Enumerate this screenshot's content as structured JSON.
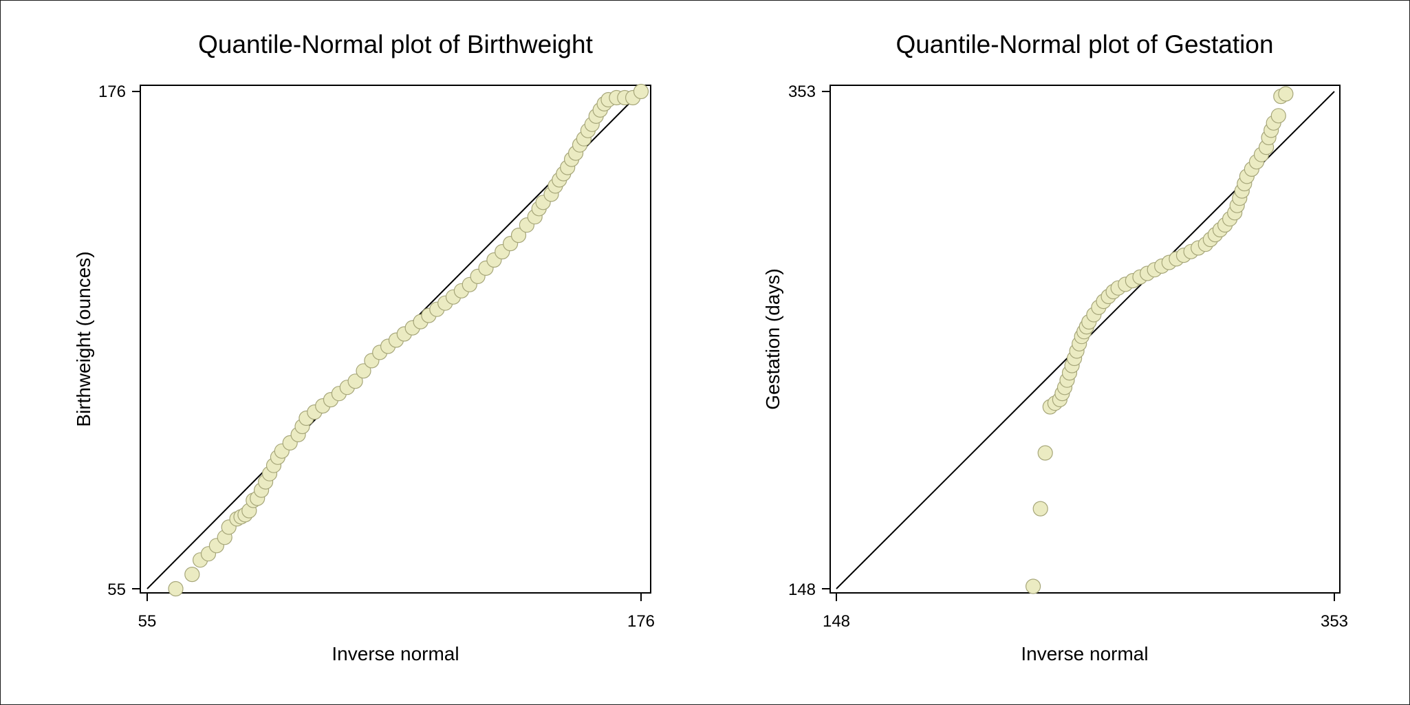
{
  "colors": {
    "marker_fill": "#ebebc2",
    "marker_stroke": "#a6a679",
    "line": "#000000",
    "background": "#ffffff"
  },
  "chart_data": [
    {
      "type": "scatter",
      "title": "Quantile-Normal plot of Birthweight",
      "xlabel": "Inverse normal",
      "ylabel": "Birthweight (ounces)",
      "xlim": [
        55,
        176
      ],
      "ylim": [
        55,
        176
      ],
      "xticks": [
        55,
        176
      ],
      "yticks": [
        55,
        176
      ],
      "reference_line": [
        [
          55,
          176
        ],
        [
          55,
          176
        ]
      ],
      "grid": false,
      "series": [
        {
          "points": [
            [
              62,
              55
            ],
            [
              66,
              58.5
            ],
            [
              68,
              62
            ],
            [
              70,
              63.5
            ],
            [
              72,
              65.5
            ],
            [
              74,
              67.5
            ],
            [
              75,
              70
            ],
            [
              77,
              72
            ],
            [
              78,
              72.5
            ],
            [
              79,
              73
            ],
            [
              80,
              74
            ],
            [
              81,
              76.5
            ],
            [
              82,
              77
            ],
            [
              83,
              79
            ],
            [
              84,
              81
            ],
            [
              85,
              83
            ],
            [
              86,
              85
            ],
            [
              87,
              87
            ],
            [
              88,
              88.5
            ],
            [
              90,
              90.5
            ],
            [
              92,
              92.5
            ],
            [
              93,
              94.5
            ],
            [
              94,
              96.5
            ],
            [
              96,
              98
            ],
            [
              98,
              99.5
            ],
            [
              100,
              101
            ],
            [
              102,
              102.5
            ],
            [
              104,
              104
            ],
            [
              106,
              105.5
            ],
            [
              108,
              108
            ],
            [
              110,
              110.5
            ],
            [
              112,
              112.5
            ],
            [
              114,
              114
            ],
            [
              116,
              115.5
            ],
            [
              118,
              117
            ],
            [
              120,
              118.5
            ],
            [
              122,
              120
            ],
            [
              124,
              121.5
            ],
            [
              126,
              123
            ],
            [
              128,
              124.5
            ],
            [
              130,
              126
            ],
            [
              132,
              127.5
            ],
            [
              134,
              129
            ],
            [
              136,
              131
            ],
            [
              138,
              133
            ],
            [
              140,
              135
            ],
            [
              142,
              137
            ],
            [
              144,
              139
            ],
            [
              146,
              141
            ],
            [
              148,
              143.5
            ],
            [
              150,
              145.5
            ],
            [
              151,
              147.5
            ],
            [
              152,
              149
            ],
            [
              154,
              151
            ],
            [
              155,
              153
            ],
            [
              156,
              154.5
            ],
            [
              157,
              156
            ],
            [
              158,
              157.5
            ],
            [
              159,
              159.5
            ],
            [
              160,
              161
            ],
            [
              161,
              163
            ],
            [
              162,
              164.5
            ],
            [
              163,
              166.5
            ],
            [
              164,
              168
            ],
            [
              165,
              170
            ],
            [
              166,
              171.5
            ],
            [
              167,
              173
            ],
            [
              168,
              174
            ],
            [
              170,
              174.5
            ],
            [
              172,
              174.5
            ],
            [
              174,
              174.5
            ],
            [
              176,
              176
            ]
          ]
        }
      ]
    },
    {
      "type": "scatter",
      "title": "Quantile-Normal plot of Gestation",
      "xlabel": "Inverse normal",
      "ylabel": "Gestation (days)",
      "xlim": [
        148,
        353
      ],
      "ylim": [
        148,
        353
      ],
      "xticks": [
        148,
        353
      ],
      "yticks": [
        148,
        353
      ],
      "reference_line": [
        [
          148,
          353
        ],
        [
          148,
          353
        ]
      ],
      "grid": false,
      "series": [
        {
          "points": [
            [
              229,
              149
            ],
            [
              232,
              181
            ],
            [
              234,
              204
            ],
            [
              236,
              223
            ],
            [
              238,
              224.5
            ],
            [
              240,
              226
            ],
            [
              241,
              228.5
            ],
            [
              242,
              231
            ],
            [
              243,
              234
            ],
            [
              244,
              237
            ],
            [
              245,
              240
            ],
            [
              246,
              243
            ],
            [
              247,
              246
            ],
            [
              248,
              249
            ],
            [
              249,
              252
            ],
            [
              250,
              254
            ],
            [
              251,
              256
            ],
            [
              252,
              258
            ],
            [
              254,
              261
            ],
            [
              256,
              264
            ],
            [
              258,
              266.5
            ],
            [
              260,
              268.5
            ],
            [
              262,
              270.5
            ],
            [
              264,
              272
            ],
            [
              267,
              273.5
            ],
            [
              270,
              275
            ],
            [
              273,
              276.5
            ],
            [
              276,
              278
            ],
            [
              279,
              279.5
            ],
            [
              282,
              281
            ],
            [
              285,
              282.5
            ],
            [
              288,
              284
            ],
            [
              291,
              285.5
            ],
            [
              294,
              287
            ],
            [
              297,
              288.5
            ],
            [
              300,
              290
            ],
            [
              302,
              292
            ],
            [
              304,
              294
            ],
            [
              306,
              296
            ],
            [
              308,
              298
            ],
            [
              310,
              300.5
            ],
            [
              312,
              303
            ],
            [
              313,
              306
            ],
            [
              314,
              309
            ],
            [
              315,
              312
            ],
            [
              316,
              315
            ],
            [
              317,
              318
            ],
            [
              319,
              321
            ],
            [
              321,
              324
            ],
            [
              323,
              327
            ],
            [
              325,
              330
            ],
            [
              326,
              334
            ],
            [
              327,
              337
            ],
            [
              328,
              340
            ],
            [
              330,
              343
            ],
            [
              331,
              351
            ],
            [
              333,
              352
            ]
          ]
        }
      ]
    }
  ]
}
